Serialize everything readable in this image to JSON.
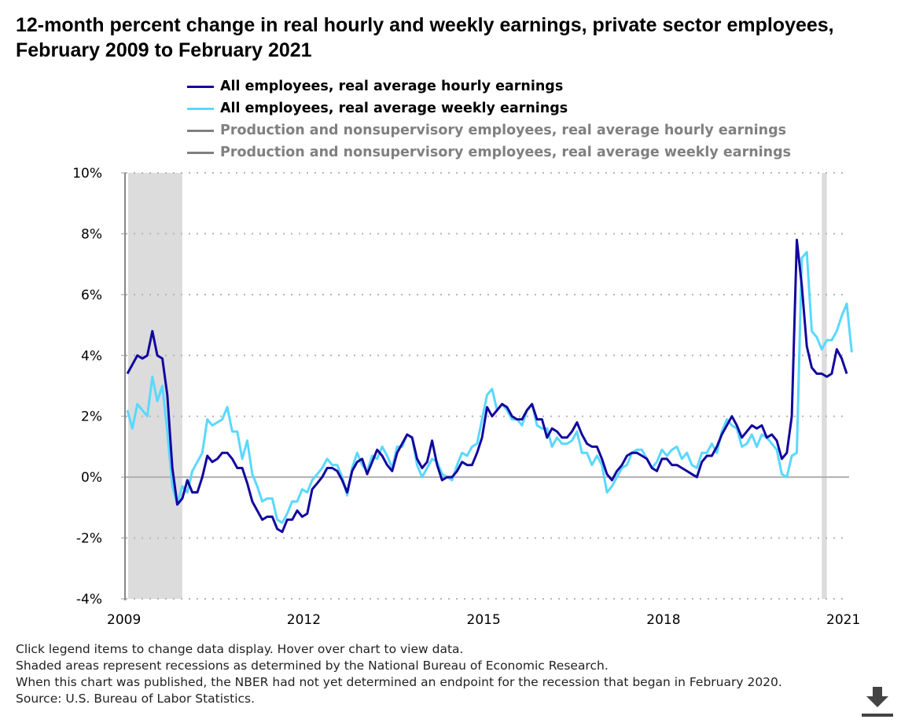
{
  "title": "12-month percent change in real hourly and weekly earnings, private sector employees, February 2009 to February 2021",
  "notes": [
    "Click legend items to change data display. Hover over chart to view data.",
    "Shaded areas represent recessions as determined by the National Bureau of Economic Research.",
    "When this chart was published, the NBER had not yet determined an endpoint for the recession that began in February 2020.",
    "Source: U.S. Bureau of Labor Statistics."
  ],
  "download_icon": "download-arrow-icon",
  "chart_data": {
    "type": "line",
    "title": "12-month percent change in real hourly and weekly earnings, private sector employees, February 2009 to February 2021",
    "x_start": "2009-02",
    "x_end": "2021-02",
    "x_ticks": [
      "2009",
      "2012",
      "2015",
      "2018",
      "2021"
    ],
    "y_ticks": [
      "-4%",
      "-2%",
      "0%",
      "2%",
      "4%",
      "6%",
      "8%",
      "10%"
    ],
    "ylim": [
      -4,
      10
    ],
    "grid": "horizontal dotted",
    "legend_placement": "top",
    "recession_shading": [
      {
        "start": "2009-02",
        "end": "2010-01"
      },
      {
        "start": "2020-09",
        "end": "2020-10"
      }
    ],
    "recession_color": "#dcdcdc",
    "series": [
      {
        "name": "All employees, real average hourly earnings",
        "color": "#12069e",
        "active": true,
        "values": [
          3.4,
          3.7,
          4.0,
          3.9,
          4.0,
          4.8,
          4.0,
          3.9,
          2.7,
          0.3,
          -0.9,
          -0.7,
          -0.1,
          -0.5,
          -0.5,
          0.0,
          0.7,
          0.5,
          0.6,
          0.8,
          0.8,
          0.6,
          0.3,
          0.3,
          -0.2,
          -0.8,
          -1.1,
          -1.4,
          -1.3,
          -1.3,
          -1.7,
          -1.8,
          -1.4,
          -1.4,
          -1.1,
          -1.3,
          -1.2,
          -0.4,
          -0.2,
          0.0,
          0.3,
          0.3,
          0.2,
          -0.1,
          -0.5,
          0.2,
          0.5,
          0.6,
          0.1,
          0.5,
          0.9,
          0.7,
          0.4,
          0.2,
          0.8,
          1.1,
          1.4,
          1.3,
          0.6,
          0.3,
          0.5,
          1.2,
          0.4,
          -0.1,
          0.0,
          0.0,
          0.2,
          0.5,
          0.4,
          0.4,
          0.8,
          1.3,
          2.3,
          2.0,
          2.2,
          2.4,
          2.3,
          2.0,
          1.9,
          1.9,
          2.2,
          2.4,
          1.9,
          1.9,
          1.3,
          1.6,
          1.5,
          1.3,
          1.3,
          1.5,
          1.8,
          1.4,
          1.1,
          1.0,
          1.0,
          0.6,
          0.1,
          -0.1,
          0.2,
          0.4,
          0.7,
          0.8,
          0.8,
          0.7,
          0.6,
          0.3,
          0.2,
          0.6,
          0.6,
          0.4,
          0.4,
          0.3,
          0.2,
          0.1,
          0.0,
          0.5,
          0.7,
          0.7,
          1.0,
          1.4,
          1.7,
          2.0,
          1.7,
          1.3,
          1.5,
          1.7,
          1.6,
          1.7,
          1.3,
          1.4,
          1.2,
          0.6,
          0.8,
          2.0,
          7.8,
          6.3,
          4.3,
          3.6,
          3.4,
          3.4,
          3.3,
          3.4,
          4.2,
          3.9,
          3.4
        ]
      },
      {
        "name": "All employees, real average weekly earnings",
        "color": "#5ad8ff",
        "active": true,
        "values": [
          2.2,
          1.6,
          2.4,
          2.2,
          2.0,
          3.3,
          2.5,
          3.0,
          1.5,
          -0.3,
          -0.9,
          -0.3,
          -0.5,
          0.2,
          0.5,
          0.8,
          1.9,
          1.7,
          1.8,
          1.9,
          2.3,
          1.5,
          1.5,
          0.6,
          1.2,
          0.1,
          -0.3,
          -0.8,
          -0.7,
          -0.7,
          -1.4,
          -1.5,
          -1.2,
          -0.8,
          -0.8,
          -0.4,
          -0.5,
          -0.1,
          0.1,
          0.3,
          0.6,
          0.4,
          0.4,
          0.0,
          -0.6,
          0.3,
          0.8,
          0.4,
          0.2,
          0.7,
          0.6,
          1.0,
          0.7,
          0.3,
          1.0,
          1.0,
          1.4,
          1.3,
          0.4,
          0.0,
          0.3,
          0.6,
          0.5,
          0.1,
          0.0,
          -0.1,
          0.4,
          0.8,
          0.7,
          1.0,
          1.1,
          1.9,
          2.7,
          2.9,
          2.2,
          2.4,
          2.2,
          1.9,
          1.9,
          1.7,
          2.2,
          2.4,
          1.7,
          1.6,
          1.6,
          1.0,
          1.3,
          1.1,
          1.1,
          1.2,
          1.5,
          0.8,
          0.8,
          0.4,
          0.7,
          0.4,
          -0.5,
          -0.3,
          0.0,
          0.3,
          0.4,
          0.8,
          0.9,
          0.9,
          0.6,
          0.3,
          0.5,
          0.9,
          0.7,
          0.9,
          1.0,
          0.6,
          0.8,
          0.4,
          0.3,
          0.8,
          0.8,
          1.1,
          0.8,
          1.5,
          1.9,
          1.7,
          1.6,
          1.0,
          1.1,
          1.4,
          1.0,
          1.4,
          1.3,
          1.1,
          0.9,
          0.1,
          0.0,
          0.7,
          0.8,
          7.2,
          7.4,
          4.8,
          4.6,
          4.2,
          4.5,
          4.5,
          4.8,
          5.3,
          5.7,
          4.1
        ]
      },
      {
        "name": "Production and nonsupervisory employees, real average hourly earnings",
        "color": "#808080",
        "active": false,
        "values": []
      },
      {
        "name": "Production and nonsupervisory employees, real average weekly earnings",
        "color": "#808080",
        "active": false,
        "values": []
      }
    ]
  }
}
